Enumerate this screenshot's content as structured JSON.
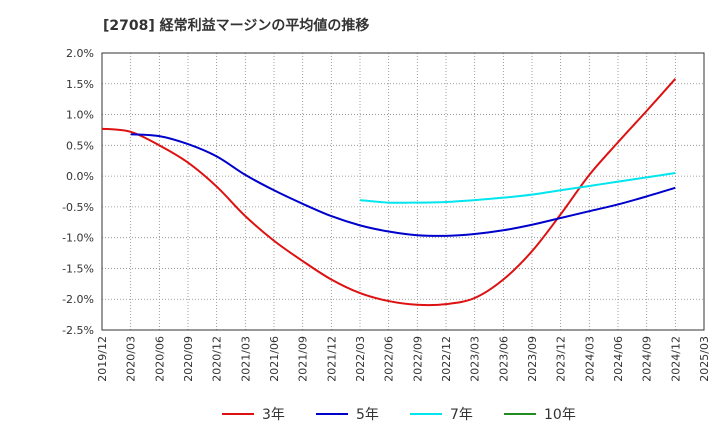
{
  "chart_data": {
    "type": "line",
    "title": "[2708]  経常利益マージンの平均値の推移",
    "xlabel": "",
    "ylabel": "",
    "ylim": [
      -2.5,
      2.0
    ],
    "y_ticks": [
      "2.0%",
      "1.5%",
      "1.0%",
      "0.5%",
      "0.0%",
      "-0.5%",
      "-1.0%",
      "-1.5%",
      "-2.0%",
      "-2.5%"
    ],
    "y_tick_values": [
      2.0,
      1.5,
      1.0,
      0.5,
      0.0,
      -0.5,
      -1.0,
      -1.5,
      -2.0,
      -2.5
    ],
    "x_ticks": [
      "2019/12",
      "2020/03",
      "2020/06",
      "2020/09",
      "2020/12",
      "2021/03",
      "2021/06",
      "2021/09",
      "2021/12",
      "2022/03",
      "2022/06",
      "2022/09",
      "2022/12",
      "2023/03",
      "2023/06",
      "2023/09",
      "2023/12",
      "2024/03",
      "2024/06",
      "2024/09",
      "2024/12",
      "2025/03"
    ],
    "grid": true,
    "legend_position": "bottom",
    "series": [
      {
        "name": "3年",
        "color": "#dd1111",
        "values": [
          [
            "2019/12",
            0.77
          ],
          [
            "2020/03",
            0.72
          ],
          [
            "2020/06",
            0.5
          ],
          [
            "2020/09",
            0.22
          ],
          [
            "2020/12",
            -0.17
          ],
          [
            "2021/03",
            -0.65
          ],
          [
            "2021/06",
            -1.05
          ],
          [
            "2021/09",
            -1.38
          ],
          [
            "2021/12",
            -1.68
          ],
          [
            "2022/03",
            -1.9
          ],
          [
            "2022/06",
            -2.03
          ],
          [
            "2022/09",
            -2.09
          ],
          [
            "2022/12",
            -2.08
          ],
          [
            "2023/03",
            -1.98
          ],
          [
            "2023/06",
            -1.68
          ],
          [
            "2023/09",
            -1.22
          ],
          [
            "2023/12",
            -0.62
          ],
          [
            "2024/03",
            0.02
          ],
          [
            "2024/06",
            0.55
          ],
          [
            "2024/09",
            1.06
          ],
          [
            "2024/12",
            1.58
          ]
        ]
      },
      {
        "name": "5年",
        "color": "#0000cc",
        "values": [
          [
            "2020/03",
            0.68
          ],
          [
            "2020/06",
            0.65
          ],
          [
            "2020/09",
            0.52
          ],
          [
            "2020/12",
            0.32
          ],
          [
            "2021/03",
            0.02
          ],
          [
            "2021/06",
            -0.23
          ],
          [
            "2021/09",
            -0.45
          ],
          [
            "2021/12",
            -0.65
          ],
          [
            "2022/03",
            -0.8
          ],
          [
            "2022/06",
            -0.9
          ],
          [
            "2022/09",
            -0.96
          ],
          [
            "2022/12",
            -0.97
          ],
          [
            "2023/03",
            -0.94
          ],
          [
            "2023/06",
            -0.88
          ],
          [
            "2023/09",
            -0.79
          ],
          [
            "2023/12",
            -0.68
          ],
          [
            "2024/03",
            -0.57
          ],
          [
            "2024/06",
            -0.46
          ],
          [
            "2024/09",
            -0.33
          ],
          [
            "2024/12",
            -0.19
          ]
        ]
      },
      {
        "name": "7年",
        "color": "#00e5ee",
        "values": [
          [
            "2022/03",
            -0.39
          ],
          [
            "2022/06",
            -0.43
          ],
          [
            "2022/09",
            -0.43
          ],
          [
            "2022/12",
            -0.42
          ],
          [
            "2023/03",
            -0.39
          ],
          [
            "2023/06",
            -0.35
          ],
          [
            "2023/09",
            -0.3
          ],
          [
            "2023/12",
            -0.23
          ],
          [
            "2024/03",
            -0.16
          ],
          [
            "2024/06",
            -0.09
          ],
          [
            "2024/09",
            -0.02
          ],
          [
            "2024/12",
            0.05
          ]
        ]
      },
      {
        "name": "10年",
        "color": "#228b22",
        "values": []
      }
    ]
  }
}
